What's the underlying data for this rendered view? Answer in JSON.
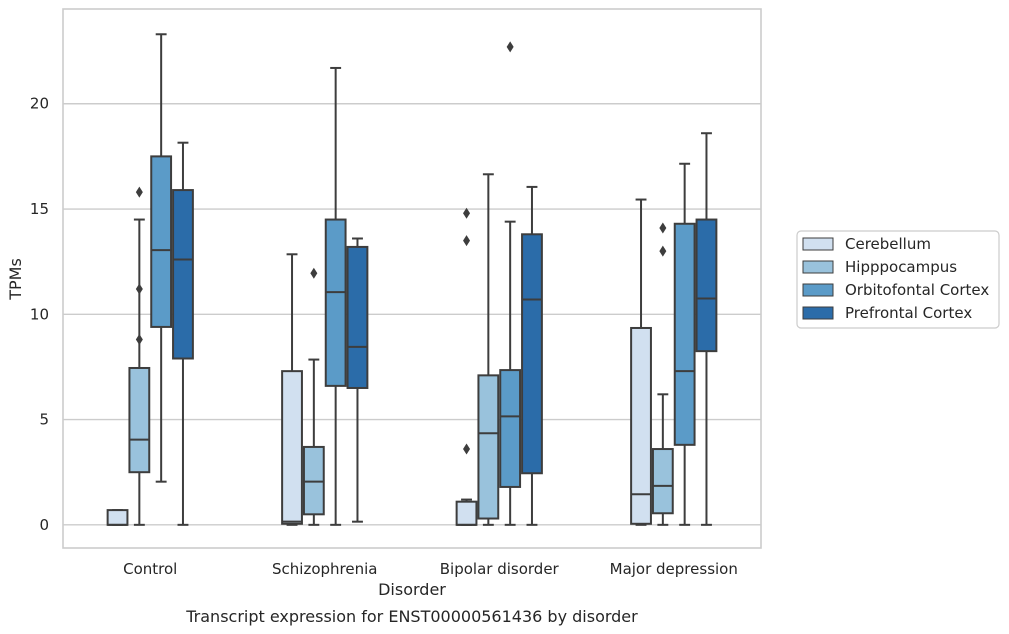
{
  "chart_data": {
    "type": "box",
    "title": "",
    "caption": "Transcript expression for ENST00000561436 by disorder",
    "xlabel": "Disorder",
    "ylabel": "TPMs",
    "ylim": [
      -1.1,
      24.5
    ],
    "yticks": [
      0,
      5,
      10,
      15,
      20
    ],
    "grid": "horizontal",
    "legend_position": "right",
    "categories": [
      "Control",
      "Schizophrenia",
      "Bipolar disorder",
      "Major depression"
    ],
    "series": [
      {
        "name": "Cerebellum",
        "color": "#d1e0f0",
        "boxes": [
          {
            "q1": 0,
            "median": 0,
            "q3": 0.7,
            "whisker_low": 0,
            "whisker_high": 0.7,
            "outliers": []
          },
          {
            "q1": 0.05,
            "median": 0.15,
            "q3": 7.3,
            "whisker_low": 0,
            "whisker_high": 12.85,
            "outliers": []
          },
          {
            "q1": 0,
            "median": 0,
            "q3": 1.1,
            "whisker_low": 0,
            "whisker_high": 1.2,
            "outliers": [
              3.6,
              13.5,
              14.8
            ]
          },
          {
            "q1": 0.05,
            "median": 1.45,
            "q3": 9.35,
            "whisker_low": 0,
            "whisker_high": 15.45,
            "outliers": []
          }
        ]
      },
      {
        "name": "Hipppocampus",
        "color": "#99c2dc",
        "boxes": [
          {
            "q1": 2.5,
            "median": 4.05,
            "q3": 7.45,
            "whisker_low": 0,
            "whisker_high": 14.5,
            "outliers": [
              8.8,
              11.2,
              15.8
            ]
          },
          {
            "q1": 0.5,
            "median": 2.05,
            "q3": 3.7,
            "whisker_low": 0,
            "whisker_high": 7.85,
            "outliers": [
              11.95
            ]
          },
          {
            "q1": 0.3,
            "median": 4.35,
            "q3": 7.1,
            "whisker_low": 0,
            "whisker_high": 16.65,
            "outliers": []
          },
          {
            "q1": 0.55,
            "median": 1.85,
            "q3": 3.6,
            "whisker_low": 0,
            "whisker_high": 6.2,
            "outliers": [
              13.0,
              14.1
            ]
          }
        ]
      },
      {
        "name": "Orbitofontal Cortex",
        "color": "#5b9bc8",
        "boxes": [
          {
            "q1": 9.4,
            "median": 13.05,
            "q3": 17.5,
            "whisker_low": 2.05,
            "whisker_high": 23.3,
            "outliers": []
          },
          {
            "q1": 6.6,
            "median": 11.05,
            "q3": 14.5,
            "whisker_low": 0,
            "whisker_high": 21.7,
            "outliers": []
          },
          {
            "q1": 1.8,
            "median": 5.15,
            "q3": 7.35,
            "whisker_low": 0,
            "whisker_high": 14.4,
            "outliers": [
              22.7
            ]
          },
          {
            "q1": 3.8,
            "median": 7.3,
            "q3": 14.3,
            "whisker_low": 0,
            "whisker_high": 17.15,
            "outliers": []
          }
        ]
      },
      {
        "name": "Prefrontal Cortex",
        "color": "#2b6ca9",
        "boxes": [
          {
            "q1": 7.9,
            "median": 12.6,
            "q3": 15.9,
            "whisker_low": 0,
            "whisker_high": 18.15,
            "outliers": []
          },
          {
            "q1": 6.5,
            "median": 8.45,
            "q3": 13.2,
            "whisker_low": 0.15,
            "whisker_high": 13.6,
            "outliers": []
          },
          {
            "q1": 2.45,
            "median": 10.7,
            "q3": 13.8,
            "whisker_low": 0,
            "whisker_high": 16.05,
            "outliers": []
          },
          {
            "q1": 8.25,
            "median": 10.75,
            "q3": 14.5,
            "whisker_low": 0,
            "whisker_high": 18.6,
            "outliers": []
          }
        ]
      }
    ]
  }
}
